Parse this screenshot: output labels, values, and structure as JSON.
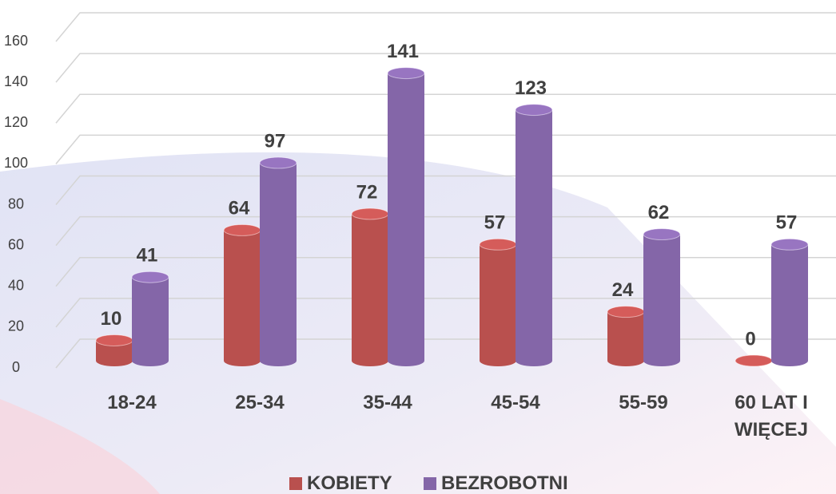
{
  "chart_data": {
    "type": "bar",
    "categories": [
      "18-24",
      "25-34",
      "35-44",
      "45-54",
      "55-59",
      "60 LAT I WIĘCEJ"
    ],
    "series": [
      {
        "name": "KOBIETY",
        "color": "#b9504e",
        "values": [
          10,
          64,
          72,
          57,
          24,
          0
        ]
      },
      {
        "name": "BEZROBOTNI",
        "color": "#8466a8",
        "values": [
          41,
          97,
          141,
          123,
          62,
          57
        ]
      }
    ],
    "ylim": [
      0,
      160
    ],
    "yticks": [
      0,
      20,
      40,
      60,
      80,
      100,
      120,
      140,
      160
    ],
    "grid": true,
    "legend": "bottom"
  }
}
